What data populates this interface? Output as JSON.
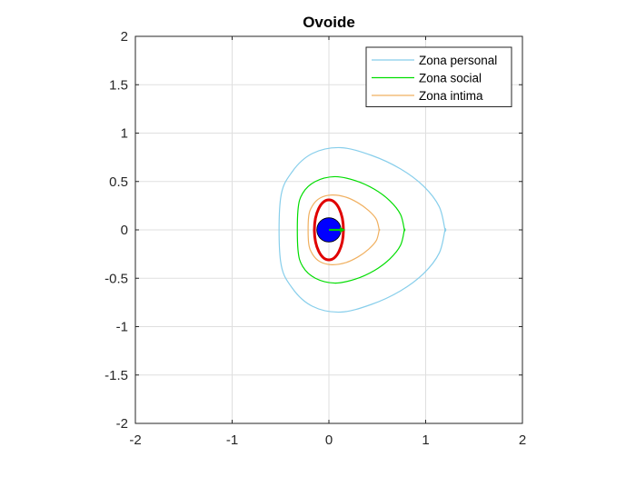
{
  "chart_data": {
    "type": "line",
    "title": "Ovoide",
    "xlabel": "",
    "ylabel": "",
    "xlim": [
      -2,
      2
    ],
    "ylim": [
      -2,
      2
    ],
    "xticks": [
      -2,
      -1,
      0,
      1,
      2
    ],
    "xtick_labels": [
      "-2",
      "-1",
      "0",
      "1",
      "2"
    ],
    "yticks": [
      -2,
      -1.5,
      -1,
      -0.5,
      0,
      0.5,
      1,
      1.5,
      2
    ],
    "ytick_labels": [
      "-2",
      "-1.5",
      "-1",
      "-0.5",
      "0",
      "0.5",
      "1",
      "1.5",
      "2"
    ],
    "grid": true,
    "legend_position": "top-right",
    "series": [
      {
        "name": "Zona personal",
        "color": "#87ceeb",
        "x": [
          1.2,
          1.14,
          0.98,
          0.74,
          0.44,
          0.12,
          -0.17,
          -0.38,
          -0.5,
          -0.5,
          -0.38,
          -0.17,
          0.12,
          0.44,
          0.74,
          0.98,
          1.14,
          1.2
        ],
        "y": [
          0.0,
          0.24,
          0.45,
          0.63,
          0.77,
          0.85,
          0.79,
          0.6,
          0.32,
          -0.32,
          -0.6,
          -0.79,
          -0.85,
          -0.77,
          -0.63,
          -0.45,
          -0.24,
          0.0
        ]
      },
      {
        "name": "Zona social",
        "color": "#00dd00",
        "x": [
          0.78,
          0.74,
          0.63,
          0.47,
          0.27,
          0.06,
          -0.14,
          -0.27,
          -0.32,
          -0.32,
          -0.27,
          -0.14,
          0.06,
          0.27,
          0.47,
          0.63,
          0.74,
          0.78
        ],
        "y": [
          0.0,
          0.16,
          0.3,
          0.42,
          0.51,
          0.55,
          0.5,
          0.38,
          0.2,
          -0.2,
          -0.38,
          -0.5,
          -0.55,
          -0.51,
          -0.42,
          -0.3,
          -0.16,
          0.0
        ]
      },
      {
        "name": "Zona intima",
        "color": "#f0b060",
        "x": [
          0.52,
          0.49,
          0.41,
          0.3,
          0.17,
          0.03,
          -0.09,
          -0.17,
          -0.21,
          -0.21,
          -0.17,
          -0.09,
          0.03,
          0.17,
          0.3,
          0.41,
          0.49,
          0.52
        ],
        "y": [
          0.0,
          0.11,
          0.2,
          0.28,
          0.34,
          0.36,
          0.33,
          0.25,
          0.13,
          -0.13,
          -0.25,
          -0.33,
          -0.36,
          -0.34,
          -0.28,
          -0.2,
          -0.11,
          0.0
        ]
      }
    ],
    "extra_marks": [
      {
        "kind": "ellipse",
        "color": "#e00000",
        "cx": 0.0,
        "cy": 0.0,
        "rx": 0.15,
        "ry": 0.31
      },
      {
        "kind": "disk",
        "color": "#0000ff",
        "cx": 0.0,
        "cy": 0.0,
        "r": 0.125
      },
      {
        "kind": "arrow",
        "color": "#00cc00",
        "x1": 0.0,
        "y1": 0.0,
        "x2": 0.17,
        "y2": 0.0
      }
    ]
  }
}
